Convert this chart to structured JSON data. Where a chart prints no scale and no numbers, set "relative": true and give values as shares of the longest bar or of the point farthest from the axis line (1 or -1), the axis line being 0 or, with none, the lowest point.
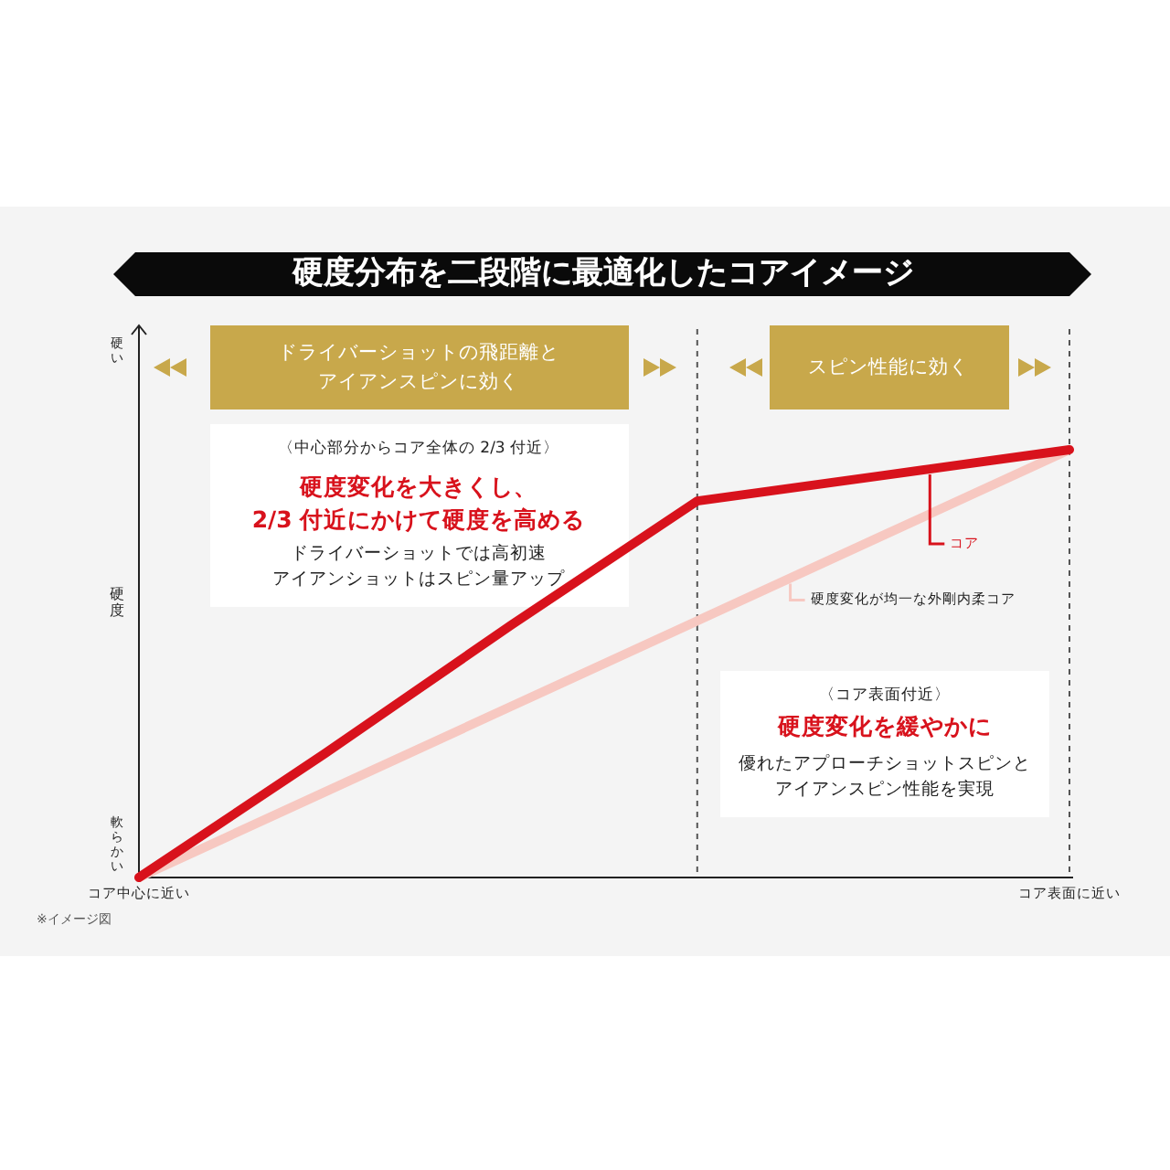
{
  "chart_data": {
    "type": "line",
    "relative": true,
    "title": "硬度分布を二段階に最適化したコアイメージ",
    "ylabel": "硬度",
    "categories": [
      "コア中心に近い",
      null,
      null,
      null,
      null,
      "コア表面に近い"
    ],
    "series": [
      {
        "name": "硬度変化が均一な外剛内柔コア",
        "color": "#f7c8c1",
        "values": [
          0,
          0.2,
          0.4,
          0.6,
          0.8,
          1
        ]
      },
      {
        "name": "コア",
        "color": "#d8121c",
        "values": [
          0,
          0.29,
          0.59,
          0.88,
          0.94,
          1
        ]
      }
    ],
    "annotations": [
      "硬い",
      "軟らかい",
      "ドライバーショットの飛距離と",
      "アイアンスピンに効く",
      "スピン性能に効く",
      "〈中心部分からコア全体の 2/3 付近〉",
      "硬度変化を大きくし、",
      "2/3 付近にかけて硬度を高める",
      "ドライバーショットでは高初速",
      "アイアンショットはスピン量アップ",
      "〈コア表面付近〉",
      "硬度変化を緩やかに",
      "優れたアプローチショットスピンと",
      "アイアンスピン性能を実現",
      "※イメージ図"
    ],
    "line_style": "solid"
  }
}
